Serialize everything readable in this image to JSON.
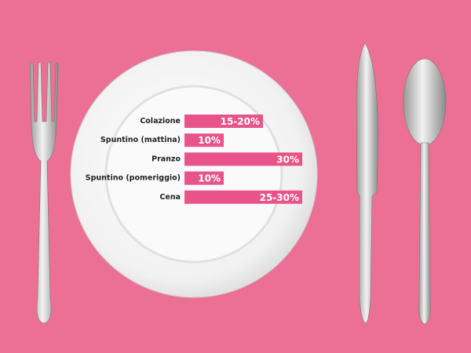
{
  "chart_data": {
    "type": "bar",
    "orientation": "horizontal",
    "categories": [
      "Colazione",
      "Spuntino (mattina)",
      "Pranzo",
      "Spuntino (pomeriggio)",
      "Cena"
    ],
    "values": [
      20,
      10,
      30,
      10,
      30
    ],
    "value_labels": [
      "15-20%",
      "10%",
      "30%",
      "10%",
      "25-30%"
    ],
    "color": "#e8548a"
  }
}
